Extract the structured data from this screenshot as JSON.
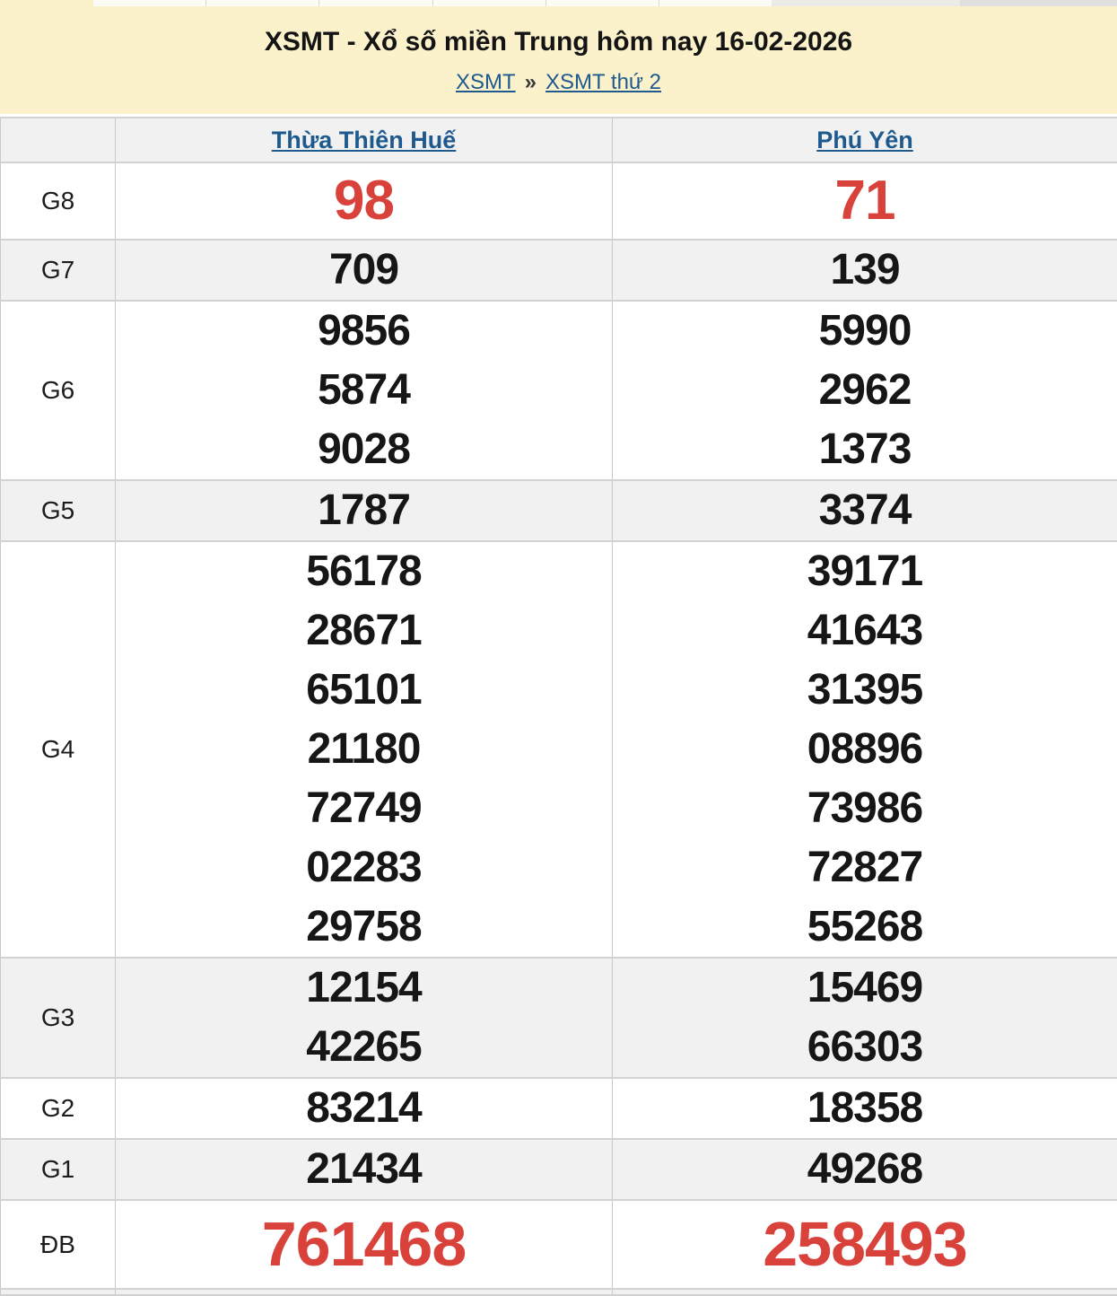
{
  "header": {
    "title": "XSMT - Xổ số miền Trung hôm nay 16-02-2026",
    "breadcrumb": {
      "links": [
        {
          "label": "XSMT"
        },
        {
          "label": "XSMT thứ 2"
        }
      ],
      "separator": "»"
    }
  },
  "results_table": {
    "corner_label": "",
    "columns": [
      {
        "label": "Thừa Thiên Huế"
      },
      {
        "label": "Phú Yên"
      }
    ],
    "rows": [
      {
        "code": "G8",
        "label": "G8",
        "highlight": true,
        "values": [
          [
            "98"
          ],
          [
            "71"
          ]
        ]
      },
      {
        "code": "G7",
        "label": "G7",
        "highlight": false,
        "values": [
          [
            "709"
          ],
          [
            "139"
          ]
        ]
      },
      {
        "code": "G6",
        "label": "G6",
        "highlight": false,
        "values": [
          [
            "9856",
            "5874",
            "9028"
          ],
          [
            "5990",
            "2962",
            "1373"
          ]
        ]
      },
      {
        "code": "G5",
        "label": "G5",
        "highlight": false,
        "values": [
          [
            "1787"
          ],
          [
            "3374"
          ]
        ]
      },
      {
        "code": "G4",
        "label": "G4",
        "highlight": false,
        "values": [
          [
            "56178",
            "28671",
            "65101",
            "21180",
            "72749",
            "02283",
            "29758"
          ],
          [
            "39171",
            "41643",
            "31395",
            "08896",
            "73986",
            "72827",
            "55268"
          ]
        ]
      },
      {
        "code": "G3",
        "label": "G3",
        "highlight": false,
        "values": [
          [
            "12154",
            "42265"
          ],
          [
            "15469",
            "66303"
          ]
        ]
      },
      {
        "code": "G2",
        "label": "G2",
        "highlight": false,
        "values": [
          [
            "83214"
          ],
          [
            "18358"
          ]
        ]
      },
      {
        "code": "G1",
        "label": "G1",
        "highlight": false,
        "values": [
          [
            "21434"
          ],
          [
            "49268"
          ]
        ]
      },
      {
        "code": "DB",
        "label": "ĐB",
        "highlight": true,
        "values": [
          [
            "761468"
          ],
          [
            "258493"
          ]
        ]
      }
    ]
  },
  "colors": {
    "header_bg": "#fbf2cb",
    "link": "#1e5a8d",
    "highlight_red": "#d9413b",
    "shaded_row": "#f1f1f1",
    "border": "#c9c9c9",
    "number": "#161616"
  }
}
